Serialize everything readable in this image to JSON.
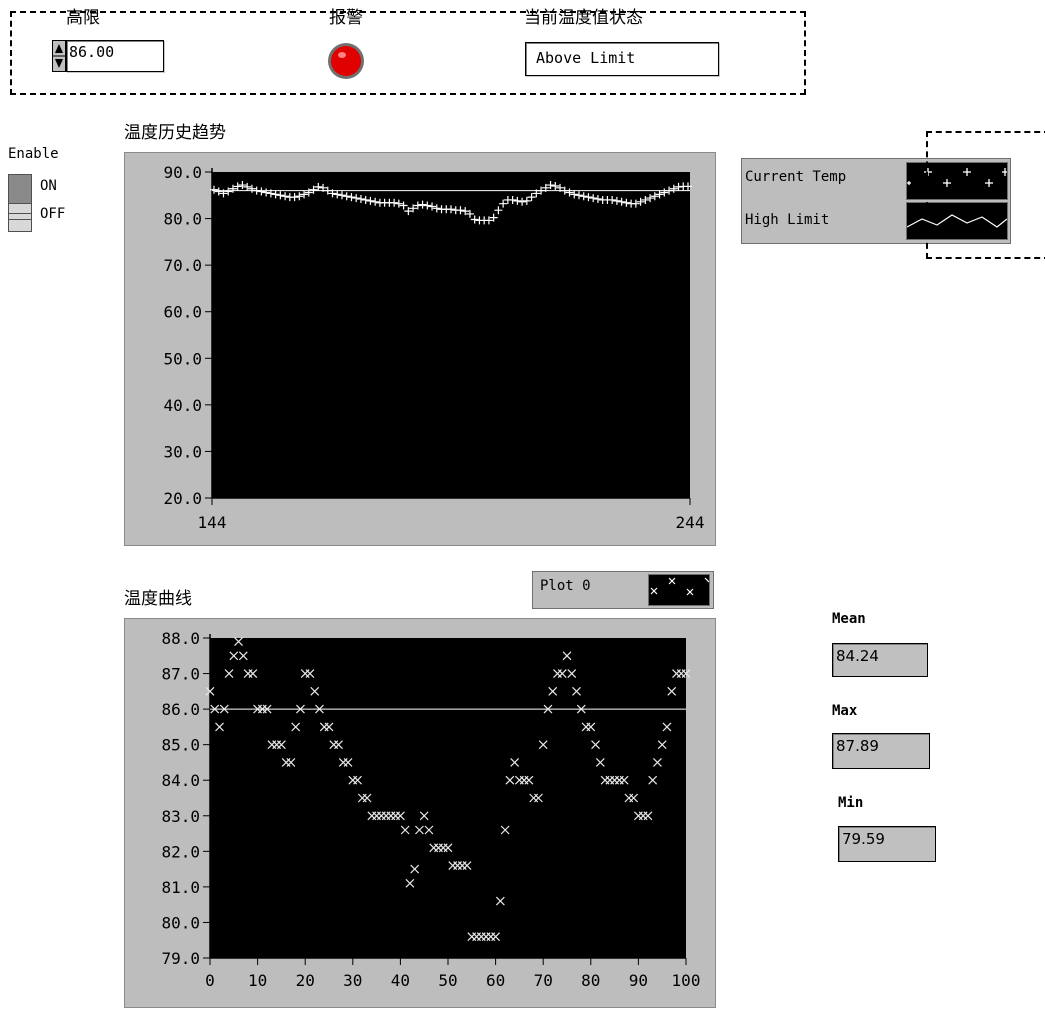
{
  "controls": {
    "high_limit_label": "高限",
    "high_limit_value": "86.00",
    "alarm_label": "报警",
    "status_label": "当前温度值状态",
    "status_value": "Above Limit",
    "colors": {
      "alarm_led": "#e00000"
    }
  },
  "enable_switch": {
    "label": "Enable",
    "on_label": "ON",
    "off_label": "OFF",
    "state": "OFF"
  },
  "history_chart": {
    "title": "温度历史趋势",
    "legend": [
      "Current Temp",
      "High Limit"
    ]
  },
  "curve_chart": {
    "title": "温度曲线",
    "legend_plot": "Plot 0"
  },
  "stats": {
    "mean_label": "Mean",
    "mean_value": "84.24",
    "max_label": "Max",
    "max_value": "87.89",
    "min_label": "Min",
    "min_value": "79.59"
  },
  "chart_data": [
    {
      "type": "line",
      "ylim": [
        20,
        90
      ],
      "xlim": [
        144,
        244
      ],
      "x_tick_labels": [
        "144",
        "244"
      ],
      "y_tick_labels": [
        "90.0",
        "80.0",
        "70.0",
        "60.0",
        "50.0",
        "40.0",
        "30.0",
        "20.0"
      ],
      "series": [
        {
          "name": "Current Temp",
          "marker": "plus",
          "values": [
            86.2,
            85.8,
            85.4,
            85.8,
            86.4,
            86.9,
            87.2,
            86.8,
            86.4,
            86.0,
            85.8,
            85.6,
            85.4,
            85.2,
            85.0,
            84.8,
            84.6,
            84.6,
            84.8,
            85.2,
            85.6,
            86.2,
            86.8,
            86.6,
            86.0,
            85.4,
            85.2,
            85.0,
            84.8,
            84.6,
            84.4,
            84.2,
            84.0,
            83.8,
            83.6,
            83.4,
            83.4,
            83.4,
            83.4,
            83.2,
            82.8,
            81.6,
            82.2,
            82.8,
            83.0,
            82.8,
            82.6,
            82.2,
            82.0,
            82.0,
            82.0,
            81.8,
            81.8,
            81.6,
            81.0,
            79.8,
            79.6,
            79.6,
            79.6,
            80.2,
            81.8,
            83.2,
            84.0,
            84.0,
            83.8,
            83.6,
            83.8,
            84.6,
            85.4,
            86.0,
            86.6,
            87.2,
            87.0,
            86.6,
            86.0,
            85.6,
            85.2,
            85.0,
            84.8,
            84.6,
            84.4,
            84.2,
            84.0,
            84.0,
            84.0,
            83.8,
            83.6,
            83.4,
            83.2,
            83.2,
            83.6,
            84.0,
            84.4,
            84.8,
            85.2,
            85.6,
            86.0,
            86.4,
            86.8,
            86.9,
            86.9
          ]
        },
        {
          "name": "High Limit",
          "marker": "line",
          "values": [
            86.0,
            86.0
          ]
        }
      ]
    },
    {
      "type": "scatter",
      "xlim": [
        0,
        100
      ],
      "ylim": [
        79,
        88
      ],
      "x_tick_labels": [
        "0",
        "10",
        "20",
        "30",
        "40",
        "50",
        "60",
        "70",
        "80",
        "90",
        "100"
      ],
      "y_tick_labels": [
        "88.0",
        "87.0",
        "86.0",
        "85.0",
        "84.0",
        "83.0",
        "82.0",
        "81.0",
        "80.0",
        "79.0"
      ],
      "series": [
        {
          "name": "Plot 0",
          "marker": "x",
          "x": [
            0,
            1,
            2,
            3,
            4,
            5,
            6,
            7,
            8,
            9,
            10,
            11,
            12,
            13,
            14,
            15,
            16,
            17,
            18,
            19,
            20,
            21,
            22,
            23,
            24,
            25,
            26,
            27,
            28,
            29,
            30,
            31,
            32,
            33,
            34,
            35,
            36,
            37,
            38,
            39,
            40,
            41,
            42,
            43,
            44,
            45,
            46,
            47,
            48,
            49,
            50,
            51,
            52,
            53,
            54,
            55,
            56,
            57,
            58,
            59,
            60,
            61,
            62,
            63,
            64,
            65,
            66,
            67,
            68,
            69,
            70,
            71,
            72,
            73,
            74,
            75,
            76,
            77,
            78,
            79,
            80,
            81,
            82,
            83,
            84,
            85,
            86,
            87,
            88,
            89,
            90,
            91,
            92,
            93,
            94,
            95,
            96,
            97,
            98,
            99,
            100
          ],
          "y": [
            86.5,
            86.0,
            85.5,
            86.0,
            87.0,
            87.5,
            87.9,
            87.5,
            87.0,
            87.0,
            86.0,
            86.0,
            86.0,
            85.0,
            85.0,
            85.0,
            84.5,
            84.5,
            85.5,
            86.0,
            87.0,
            87.0,
            86.5,
            86.0,
            85.5,
            85.5,
            85.0,
            85.0,
            84.5,
            84.5,
            84.0,
            84.0,
            83.5,
            83.5,
            83.0,
            83.0,
            83.0,
            83.0,
            83.0,
            83.0,
            83.0,
            82.6,
            81.1,
            81.5,
            82.6,
            83.0,
            82.6,
            82.1,
            82.1,
            82.1,
            82.1,
            81.6,
            81.6,
            81.6,
            81.6,
            79.6,
            79.6,
            79.6,
            79.6,
            79.6,
            79.6,
            80.6,
            82.6,
            84.0,
            84.5,
            84.0,
            84.0,
            84.0,
            83.5,
            83.5,
            85.0,
            86.0,
            86.5,
            87.0,
            87.0,
            87.5,
            87.0,
            86.5,
            86.0,
            85.5,
            85.5,
            85.0,
            84.5,
            84.0,
            84.0,
            84.0,
            84.0,
            84.0,
            83.5,
            83.5,
            83.0,
            83.0,
            83.0,
            84.0,
            84.5,
            85.0,
            85.5,
            86.5,
            87.0,
            87.0,
            87.0
          ]
        },
        {
          "name": "High Limit",
          "marker": "line",
          "values": [
            86.0,
            86.0
          ]
        }
      ]
    }
  ]
}
